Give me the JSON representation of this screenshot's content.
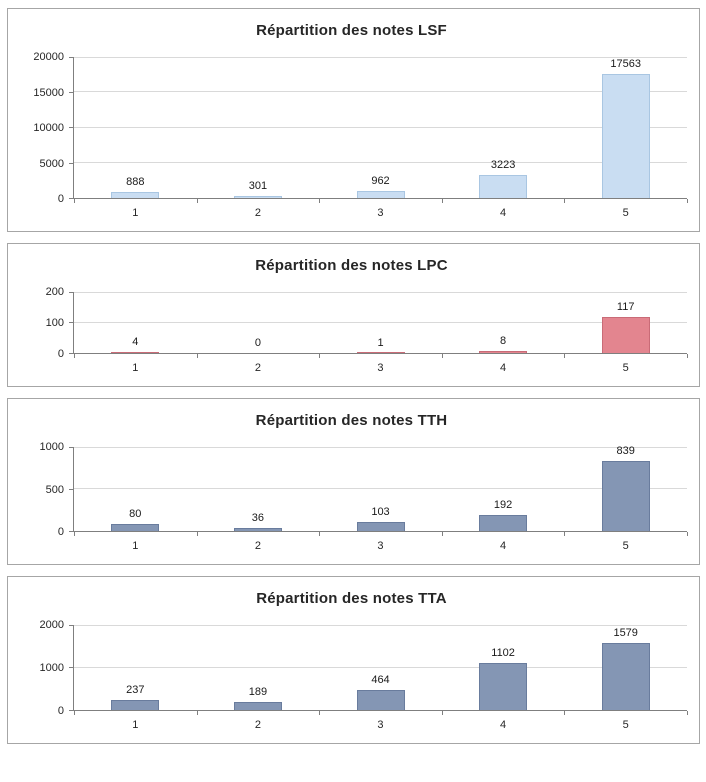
{
  "page": {
    "background": "#ffffff",
    "panel_border_color": "#a6a6a6",
    "gridline_color": "#d9d9d9",
    "axis_color": "#7f7f7f"
  },
  "chart_data": [
    {
      "type": "bar",
      "title": "Répartition des notes LSF",
      "categories": [
        "1",
        "2",
        "3",
        "4",
        "5"
      ],
      "values": [
        888,
        301,
        962,
        3223,
        17563
      ],
      "xlabel": "",
      "ylabel": "",
      "ylim": [
        0,
        20000
      ],
      "yticks": [
        0,
        5000,
        10000,
        15000,
        20000
      ],
      "grid": true,
      "legend": "none",
      "bar_color": "#c9ddf2",
      "bar_border": "#a9c6e2"
    },
    {
      "type": "bar",
      "title": "Répartition des notes LPC",
      "categories": [
        "1",
        "2",
        "3",
        "4",
        "5"
      ],
      "values": [
        4,
        0,
        1,
        8,
        117
      ],
      "xlabel": "",
      "ylabel": "",
      "ylim": [
        0,
        200
      ],
      "yticks": [
        0,
        100,
        200
      ],
      "grid": true,
      "legend": "none",
      "bar_color": "#e3858f",
      "bar_border": "#c96b77"
    },
    {
      "type": "bar",
      "title": "Répartition des notes TTH",
      "categories": [
        "1",
        "2",
        "3",
        "4",
        "5"
      ],
      "values": [
        80,
        36,
        103,
        192,
        839
      ],
      "xlabel": "",
      "ylabel": "",
      "ylim": [
        0,
        1000
      ],
      "yticks": [
        0,
        500,
        1000
      ],
      "grid": true,
      "legend": "none",
      "bar_color": "#8496b4",
      "bar_border": "#697c9d"
    },
    {
      "type": "bar",
      "title": "Répartition des notes TTA",
      "categories": [
        "1",
        "2",
        "3",
        "4",
        "5"
      ],
      "values": [
        237,
        189,
        464,
        1102,
        1579
      ],
      "xlabel": "",
      "ylabel": "",
      "ylim": [
        0,
        2000
      ],
      "yticks": [
        0,
        1000,
        2000
      ],
      "grid": true,
      "legend": "none",
      "bar_color": "#8496b4",
      "bar_border": "#697c9d"
    }
  ]
}
